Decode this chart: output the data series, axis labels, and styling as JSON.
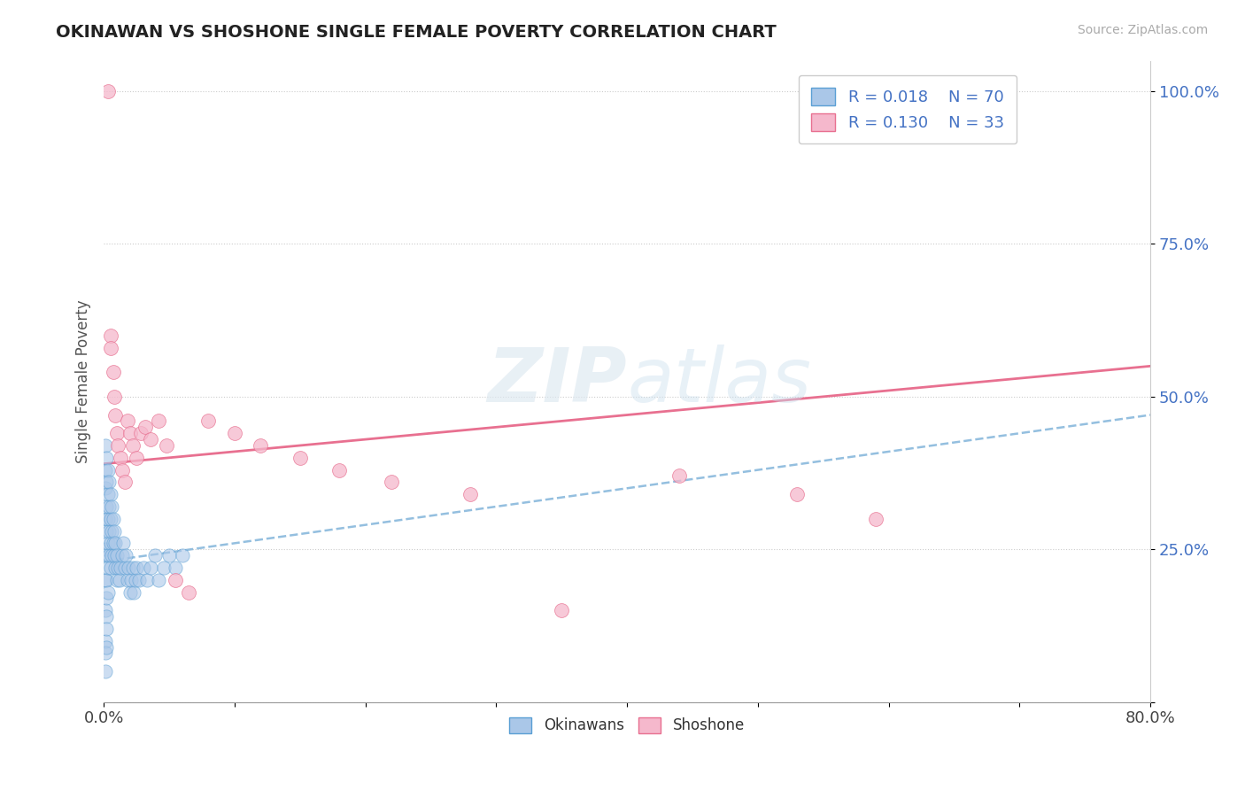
{
  "title": "OKINAWAN VS SHOSHONE SINGLE FEMALE POVERTY CORRELATION CHART",
  "source": "Source: ZipAtlas.com",
  "ylabel": "Single Female Poverty",
  "xmin": 0.0,
  "xmax": 0.8,
  "ymin": 0.0,
  "ymax": 1.05,
  "watermark_line1": "ZIP",
  "watermark_line2": "atlas",
  "legend_r1": "R = 0.018",
  "legend_n1": "N = 70",
  "legend_r2": "R = 0.130",
  "legend_n2": "N = 33",
  "okinawan_color": "#aac7e8",
  "shoshone_color": "#f5b8cc",
  "okinawan_edge_color": "#5a9fd4",
  "shoshone_edge_color": "#e87090",
  "okinawan_line_color": "#88b8dc",
  "shoshone_line_color": "#e87090",
  "background_color": "#ffffff",
  "ok_x": [
    0.001,
    0.001,
    0.001,
    0.001,
    0.001,
    0.001,
    0.001,
    0.001,
    0.001,
    0.001,
    0.002,
    0.002,
    0.002,
    0.002,
    0.002,
    0.002,
    0.002,
    0.002,
    0.002,
    0.002,
    0.003,
    0.003,
    0.003,
    0.003,
    0.003,
    0.003,
    0.004,
    0.004,
    0.004,
    0.004,
    0.005,
    0.005,
    0.005,
    0.005,
    0.006,
    0.006,
    0.006,
    0.007,
    0.007,
    0.008,
    0.008,
    0.009,
    0.009,
    0.01,
    0.01,
    0.011,
    0.012,
    0.013,
    0.014,
    0.015,
    0.016,
    0.017,
    0.018,
    0.019,
    0.02,
    0.021,
    0.022,
    0.023,
    0.024,
    0.025,
    0.027,
    0.03,
    0.033,
    0.036,
    0.039,
    0.042,
    0.046,
    0.05,
    0.055,
    0.06
  ],
  "ok_y": [
    0.38,
    0.35,
    0.42,
    0.3,
    0.25,
    0.2,
    0.15,
    0.1,
    0.08,
    0.05,
    0.4,
    0.36,
    0.32,
    0.28,
    0.24,
    0.2,
    0.17,
    0.14,
    0.12,
    0.09,
    0.38,
    0.34,
    0.3,
    0.26,
    0.22,
    0.18,
    0.36,
    0.32,
    0.28,
    0.24,
    0.34,
    0.3,
    0.26,
    0.22,
    0.32,
    0.28,
    0.24,
    0.3,
    0.26,
    0.28,
    0.24,
    0.26,
    0.22,
    0.24,
    0.2,
    0.22,
    0.2,
    0.22,
    0.24,
    0.26,
    0.22,
    0.24,
    0.2,
    0.22,
    0.18,
    0.2,
    0.22,
    0.18,
    0.2,
    0.22,
    0.2,
    0.22,
    0.2,
    0.22,
    0.24,
    0.2,
    0.22,
    0.24,
    0.22,
    0.24
  ],
  "sh_x": [
    0.003,
    0.005,
    0.005,
    0.007,
    0.008,
    0.009,
    0.01,
    0.011,
    0.013,
    0.014,
    0.016,
    0.018,
    0.02,
    0.022,
    0.025,
    0.028,
    0.032,
    0.036,
    0.042,
    0.048,
    0.055,
    0.065,
    0.08,
    0.1,
    0.12,
    0.15,
    0.18,
    0.22,
    0.28,
    0.35,
    0.44,
    0.53,
    0.59
  ],
  "sh_y": [
    1.0,
    0.6,
    0.58,
    0.54,
    0.5,
    0.47,
    0.44,
    0.42,
    0.4,
    0.38,
    0.36,
    0.46,
    0.44,
    0.42,
    0.4,
    0.44,
    0.45,
    0.43,
    0.46,
    0.42,
    0.2,
    0.18,
    0.46,
    0.44,
    0.42,
    0.4,
    0.38,
    0.36,
    0.34,
    0.15,
    0.37,
    0.34,
    0.3
  ],
  "ok_trend_x0": 0.0,
  "ok_trend_y0": 0.23,
  "ok_trend_x1": 0.8,
  "ok_trend_y1": 0.47,
  "sh_trend_x0": 0.0,
  "sh_trend_y0": 0.39,
  "sh_trend_x1": 0.8,
  "sh_trend_y1": 0.55
}
